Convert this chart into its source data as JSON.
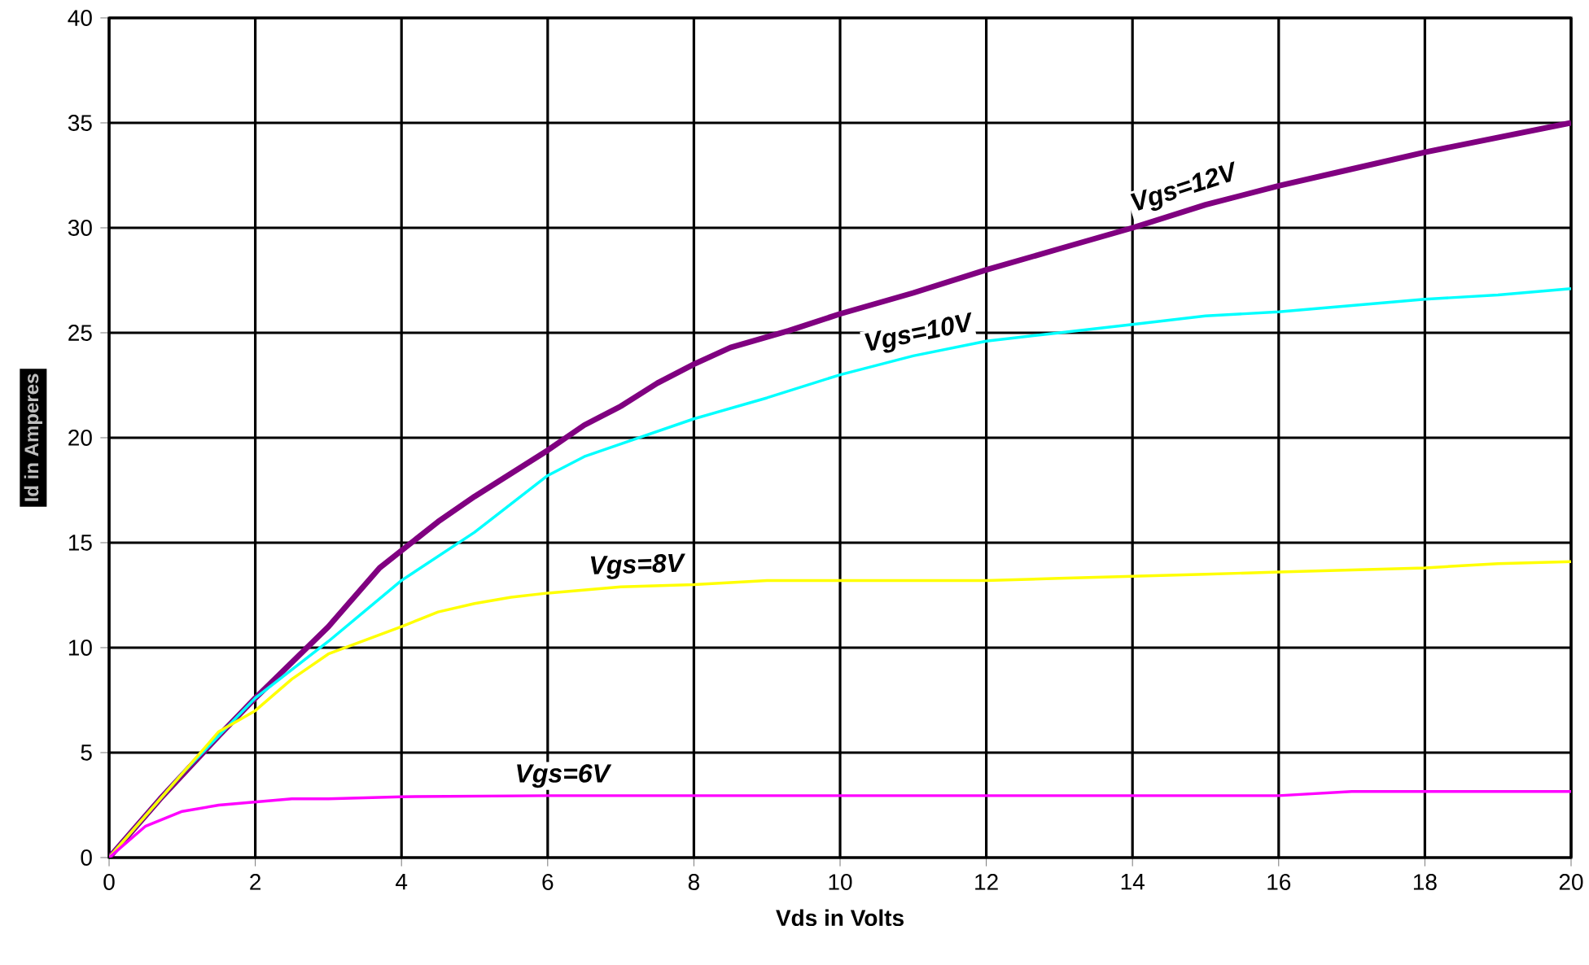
{
  "chart_data": {
    "type": "line",
    "xlabel": "Vds in Volts",
    "ylabel": "Id in Amperes",
    "xlim": [
      0,
      20
    ],
    "ylim": [
      0,
      40
    ],
    "xticks": [
      0,
      2,
      4,
      6,
      8,
      10,
      12,
      14,
      16,
      18,
      20
    ],
    "yticks": [
      0,
      5,
      10,
      15,
      20,
      25,
      30,
      35,
      40
    ],
    "grid": true,
    "marker": "none",
    "line_style": "solid",
    "series": [
      {
        "name": "Vgs=12V",
        "color": "#800080",
        "x": [
          0,
          0.7,
          1.5,
          2,
          3,
          3.7,
          4.5,
          5,
          6,
          6.5,
          7,
          7.5,
          8,
          8.5,
          9.3,
          10,
          11,
          12,
          13,
          14,
          15,
          16,
          17,
          18,
          19,
          20
        ],
        "values": [
          0,
          2.8,
          5.8,
          7.6,
          11,
          13.8,
          16,
          17.2,
          19.4,
          20.6,
          21.5,
          22.6,
          23.5,
          24.3,
          25.1,
          25.9,
          26.9,
          28,
          29,
          30,
          31.1,
          32,
          32.8,
          33.6,
          34.3,
          35
        ]
      },
      {
        "name": "Vgs=10V",
        "color": "#00ffff",
        "x": [
          0,
          1,
          2,
          3,
          4,
          5,
          6,
          6.5,
          7,
          8,
          9,
          10,
          11,
          12,
          13,
          14,
          15,
          16,
          17,
          18,
          19,
          20
        ],
        "values": [
          0,
          4,
          7.6,
          10.3,
          13.2,
          15.5,
          18.2,
          19.1,
          19.7,
          20.9,
          21.9,
          23,
          23.9,
          24.6,
          25,
          25.4,
          25.8,
          26,
          26.3,
          26.6,
          26.8,
          27.1
        ]
      },
      {
        "name": "Vgs=8V",
        "color": "#ffff00",
        "x": [
          0,
          1,
          1.5,
          2,
          2.5,
          3,
          4,
          4.5,
          5,
          5.5,
          6,
          7,
          8,
          9,
          10,
          12,
          13,
          14,
          15,
          16,
          17,
          18,
          19,
          20
        ],
        "values": [
          0,
          4,
          6,
          7,
          8.5,
          9.7,
          11,
          11.7,
          12.1,
          12.4,
          12.6,
          12.9,
          13,
          13.2,
          13.2,
          13.2,
          13.3,
          13.4,
          13.5,
          13.6,
          13.7,
          13.8,
          14,
          14.1
        ]
      },
      {
        "name": "Vgs=6V",
        "color": "#ff00ff",
        "x": [
          0,
          0.5,
          1,
          1.5,
          2.5,
          3,
          4,
          6,
          8,
          16,
          17,
          18,
          20
        ],
        "values": [
          0,
          1.5,
          2.2,
          2.5,
          2.8,
          2.8,
          2.9,
          2.95,
          2.95,
          2.95,
          3.15,
          3.15,
          3.15
        ]
      }
    ]
  }
}
